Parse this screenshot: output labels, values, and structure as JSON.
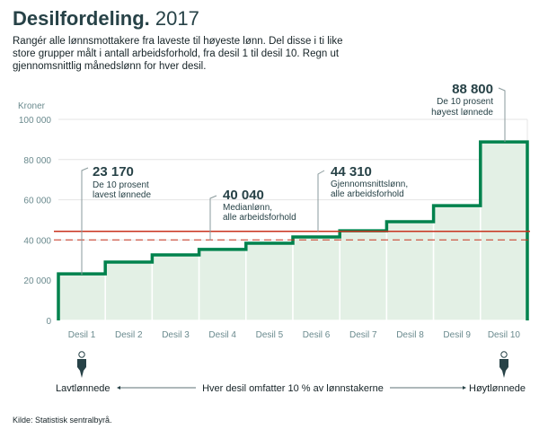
{
  "title": {
    "bold": "Desilfordeling.",
    "year": "2017"
  },
  "intro": "Rangér alle lønnsmottakere fra laveste til høyeste lønn. Del disse i ti like store grupper målt i antall arbeidsforhold, fra desil 1 til desil 10. Regn ut gjennomsnittlig månedslønn for hver desil.",
  "source": "Kilde: Statistisk sentralbyrå.",
  "chart_data": {
    "type": "step-area",
    "ylabel": "Kroner",
    "ylim": [
      0,
      100000
    ],
    "yticks": [
      0,
      20000,
      40000,
      60000,
      80000,
      100000
    ],
    "ytick_labels": [
      "0",
      "20 000",
      "40 000",
      "60 000",
      "80 000",
      "100 000"
    ],
    "categories": [
      "Desil 1",
      "Desil 2",
      "Desil 3",
      "Desil 4",
      "Desil 5",
      "Desil 6",
      "Desil 7",
      "Desil 8",
      "Desil 9",
      "Desil 10"
    ],
    "values": [
      23170,
      29000,
      32600,
      35300,
      38400,
      41500,
      44600,
      49100,
      57100,
      88800
    ],
    "grid": true,
    "colors": {
      "step": "#00824d",
      "fill": "#e3f0e5",
      "reference": "#c8321e",
      "grid": "#e4e4e4"
    },
    "reference_lines": [
      {
        "value": 44310,
        "style": "solid",
        "label": "44 310",
        "text": [
          "Gjennomsnittslønn,",
          "alle arbeidsforhold"
        ]
      },
      {
        "value": 40040,
        "style": "dashed",
        "label": "40 040",
        "text": [
          "Medianlønn,",
          "alle arbeidsforhold"
        ]
      }
    ],
    "annotations": [
      {
        "label": "23 170",
        "text": [
          "De 10 prosent",
          "lavest lønnede"
        ]
      },
      {
        "label": "88 800",
        "text": [
          "De 10 prosent",
          "høyest lønnede"
        ]
      }
    ]
  },
  "legend": {
    "left": "Lavtlønnede",
    "middle": "Hver desil omfatter 10 % av lønnstakerne",
    "right": "Høytlønnede",
    "icons": [
      "person-icon",
      "person-icon"
    ]
  }
}
